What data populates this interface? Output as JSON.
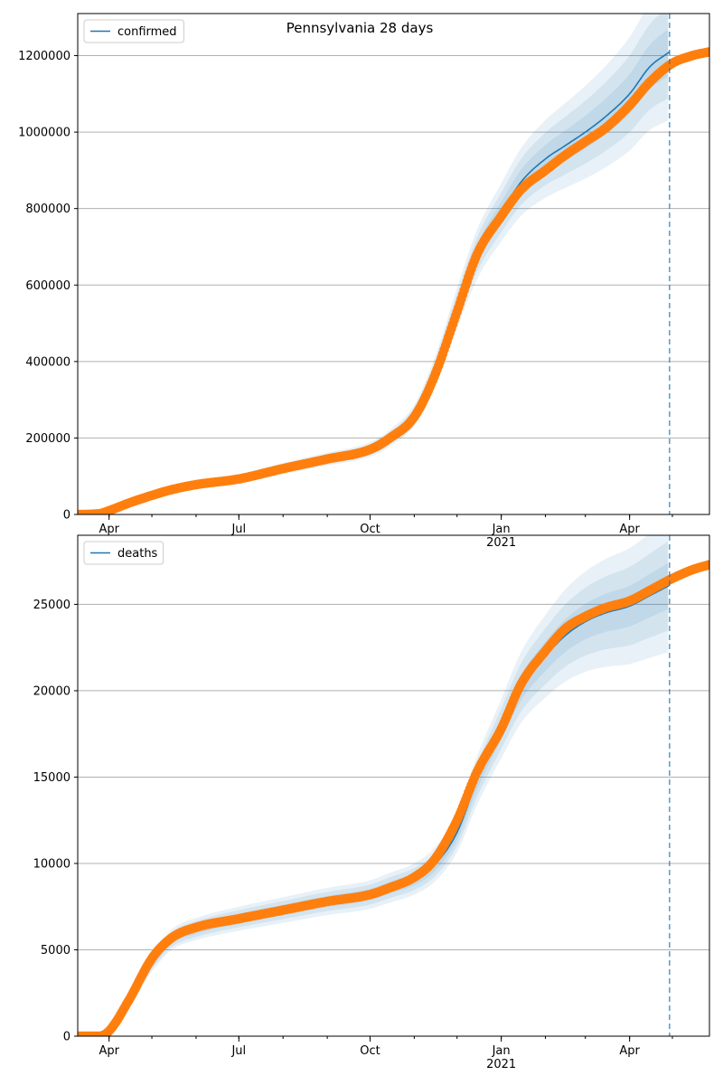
{
  "chart_data": [
    {
      "type": "line",
      "title": "Pennsylvania 28 days",
      "xlabel": "",
      "ylabel": "",
      "legend": {
        "label": "confirmed",
        "placement": "top-left"
      },
      "grid": "horizontal",
      "xlim": [
        "2020-03-10",
        "2021-05-27"
      ],
      "ylim": [
        0,
        1310000
      ],
      "yticks": [
        0,
        200000,
        400000,
        600000,
        800000,
        1000000,
        1200000
      ],
      "xticks": [
        {
          "date": "2020-04-01",
          "label": "Apr"
        },
        {
          "date": "2020-07-01",
          "label": "Jul"
        },
        {
          "date": "2020-10-01",
          "label": "Oct"
        },
        {
          "date": "2021-01-01",
          "label": "Jan",
          "sublabel": "2021"
        },
        {
          "date": "2021-04-01",
          "label": "Apr"
        }
      ],
      "forecast_start": "2021-04-29",
      "colors": {
        "model": "#1f77b4",
        "observed": "#ff7f0e",
        "band": "#1f77b4"
      },
      "series": [
        {
          "name": "confirmed",
          "kind": "model",
          "x": [
            "2020-03-10",
            "2020-03-25",
            "2020-04-01",
            "2020-04-15",
            "2020-05-01",
            "2020-05-15",
            "2020-06-01",
            "2020-07-01",
            "2020-08-01",
            "2020-09-01",
            "2020-10-01",
            "2020-10-15",
            "2020-11-01",
            "2020-11-15",
            "2020-12-01",
            "2020-12-15",
            "2021-01-01",
            "2021-01-15",
            "2021-02-01",
            "2021-02-15",
            "2021-03-01",
            "2021-03-15",
            "2021-04-01",
            "2021-04-15",
            "2021-04-29"
          ],
          "y": [
            0,
            3000,
            10000,
            30000,
            50000,
            65000,
            78000,
            93000,
            120000,
            145000,
            170000,
            200000,
            260000,
            370000,
            540000,
            680000,
            790000,
            870000,
            930000,
            965000,
            1000000,
            1040000,
            1100000,
            1170000,
            1210000
          ]
        },
        {
          "name": "",
          "kind": "observed",
          "x": [
            "2020-03-10",
            "2020-03-25",
            "2020-04-01",
            "2020-04-15",
            "2020-05-01",
            "2020-05-15",
            "2020-06-01",
            "2020-07-01",
            "2020-08-01",
            "2020-09-01",
            "2020-10-01",
            "2020-10-15",
            "2020-11-01",
            "2020-11-15",
            "2020-12-01",
            "2020-12-15",
            "2021-01-01",
            "2021-01-15",
            "2021-02-01",
            "2021-02-15",
            "2021-03-01",
            "2021-03-15",
            "2021-04-01",
            "2021-04-15",
            "2021-05-01",
            "2021-05-15",
            "2021-05-27"
          ],
          "y": [
            0,
            2000,
            10000,
            30000,
            50000,
            65000,
            78000,
            93000,
            120000,
            145000,
            170000,
            200000,
            255000,
            360000,
            530000,
            680000,
            780000,
            850000,
            900000,
            940000,
            975000,
            1010000,
            1070000,
            1130000,
            1180000,
            1200000,
            1210000
          ]
        }
      ]
    },
    {
      "type": "line",
      "title": "",
      "xlabel": "",
      "ylabel": "",
      "legend": {
        "label": "deaths",
        "placement": "top-left"
      },
      "grid": "horizontal",
      "xlim": [
        "2020-03-10",
        "2021-05-27"
      ],
      "ylim": [
        0,
        29000
      ],
      "yticks": [
        0,
        5000,
        10000,
        15000,
        20000,
        25000
      ],
      "xticks": [
        {
          "date": "2020-04-01",
          "label": "Apr"
        },
        {
          "date": "2020-07-01",
          "label": "Jul"
        },
        {
          "date": "2020-10-01",
          "label": "Oct"
        },
        {
          "date": "2021-01-01",
          "label": "Jan",
          "sublabel": "2021"
        },
        {
          "date": "2021-04-01",
          "label": "Apr"
        }
      ],
      "forecast_start": "2021-04-29",
      "colors": {
        "model": "#1f77b4",
        "observed": "#ff7f0e",
        "band": "#1f77b4"
      },
      "series": [
        {
          "name": "deaths",
          "kind": "model",
          "x": [
            "2020-03-10",
            "2020-03-25",
            "2020-04-01",
            "2020-04-15",
            "2020-05-01",
            "2020-05-15",
            "2020-06-01",
            "2020-07-01",
            "2020-08-01",
            "2020-09-01",
            "2020-10-01",
            "2020-10-15",
            "2020-11-01",
            "2020-11-15",
            "2020-12-01",
            "2020-12-15",
            "2021-01-01",
            "2021-01-15",
            "2021-02-01",
            "2021-02-15",
            "2021-03-01",
            "2021-03-15",
            "2021-04-01",
            "2021-04-15",
            "2021-04-29"
          ],
          "y": [
            0,
            0,
            300,
            2000,
            4200,
            5600,
            6200,
            6800,
            7300,
            7800,
            8200,
            8600,
            9100,
            9900,
            11800,
            14800,
            17800,
            20200,
            22000,
            23200,
            24000,
            24500,
            24900,
            25500,
            26100
          ]
        },
        {
          "name": "",
          "kind": "observed",
          "x": [
            "2020-03-10",
            "2020-03-25",
            "2020-04-01",
            "2020-04-15",
            "2020-05-01",
            "2020-05-15",
            "2020-06-01",
            "2020-07-01",
            "2020-08-01",
            "2020-09-01",
            "2020-10-01",
            "2020-10-15",
            "2020-11-01",
            "2020-11-15",
            "2020-12-01",
            "2020-12-15",
            "2021-01-01",
            "2021-01-15",
            "2021-02-01",
            "2021-02-15",
            "2021-03-01",
            "2021-03-15",
            "2021-04-01",
            "2021-04-15",
            "2021-05-01",
            "2021-05-15",
            "2021-05-27"
          ],
          "y": [
            0,
            0,
            300,
            2100,
            4500,
            5700,
            6300,
            6800,
            7300,
            7800,
            8200,
            8600,
            9200,
            10200,
            12500,
            15300,
            17800,
            20400,
            22300,
            23600,
            24300,
            24800,
            25200,
            25800,
            26500,
            27000,
            27300
          ]
        }
      ]
    }
  ]
}
